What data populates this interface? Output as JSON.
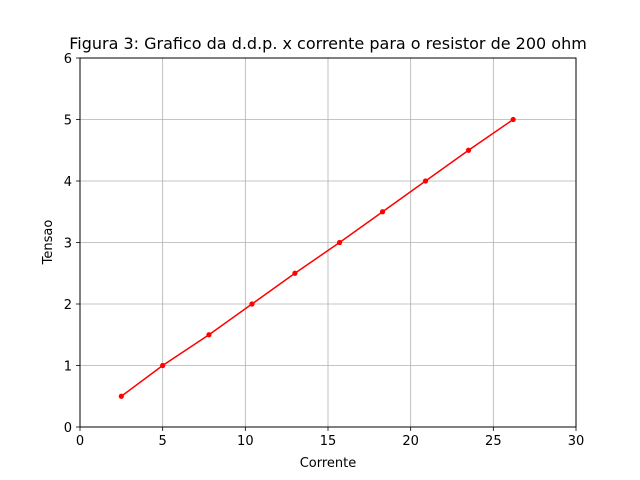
{
  "chart_data": {
    "type": "line",
    "title": "Figura 3: Grafico da d.d.p. x corrente para o resistor de 200 ohm",
    "xlabel": "Corrente",
    "ylabel": "Tensao",
    "xlim": [
      0,
      30
    ],
    "ylim": [
      0,
      6
    ],
    "xticks": [
      0,
      5,
      10,
      15,
      20,
      25,
      30
    ],
    "yticks": [
      0,
      1,
      2,
      3,
      4,
      5,
      6
    ],
    "grid": true,
    "series": [
      {
        "color": "#ff0000",
        "marker": "circle",
        "x": [
          2.5,
          5.0,
          7.8,
          10.4,
          13.0,
          15.7,
          18.3,
          20.9,
          23.5,
          26.2
        ],
        "y": [
          0.5,
          1.0,
          1.5,
          2.0,
          2.5,
          3.0,
          3.5,
          4.0,
          4.5,
          5.0
        ]
      }
    ]
  }
}
